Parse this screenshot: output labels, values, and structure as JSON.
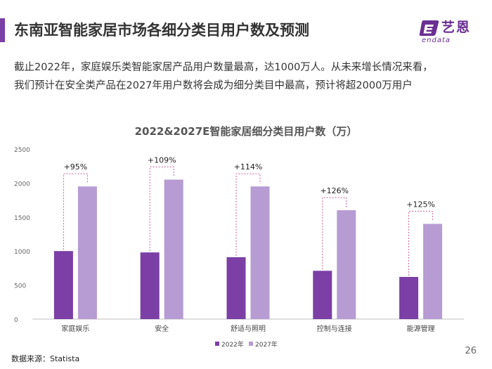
{
  "header": {
    "title": "东南亚智能家居市场各细分类目用户数及预测",
    "accent_color": "#7b3fa6"
  },
  "logo": {
    "cn": "艺恩",
    "en": "endata",
    "color": "#6a2f93",
    "icon": "endata-logo-icon"
  },
  "summary": {
    "line1": "截止2022年，家庭娱乐类智能家居产品用户数量最高，达1000万人。从未来增长情况来看，",
    "line2": "我们预计在安全类产品在2027年用户数将会成为细分类目中最高，预计将超2000万用户"
  },
  "chart_data": {
    "type": "bar",
    "title": "2022&2027E智能家居细分类目用户数（万）",
    "categories": [
      "家庭娱乐",
      "安全",
      "舒适与照明",
      "控制与连接",
      "能源管理"
    ],
    "series": [
      {
        "name": "2022年",
        "values": [
          1000,
          980,
          910,
          710,
          620
        ],
        "color": "#7b3fa6"
      },
      {
        "name": "2027年",
        "values": [
          1950,
          2050,
          1950,
          1600,
          1400
        ],
        "color": "#b79bd3"
      }
    ],
    "growth_labels": [
      "+95%",
      "+109%",
      "+114%",
      "+126%",
      "+125%"
    ],
    "y_ticks": [
      "0",
      "500",
      "1000",
      "1500",
      "2000",
      "2500"
    ],
    "ylim": [
      0,
      2500
    ],
    "xlabel": "",
    "ylabel": "",
    "legend": "bottom-center",
    "grid": false,
    "bracket_color": "#c8609a"
  },
  "footer": {
    "source": "数据来源：Statista",
    "page_number": "26"
  }
}
